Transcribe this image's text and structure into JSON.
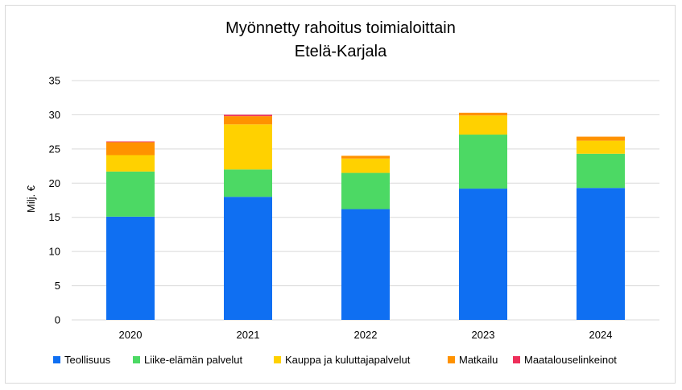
{
  "chart_data": {
    "type": "bar",
    "stacked": true,
    "title": "Myönnetty rahoitus toimialoittain",
    "subtitle": "Etelä-Karjala",
    "ylabel": "Milj. €",
    "xlabel": "",
    "ylim": [
      0,
      35
    ],
    "yticks": [
      0,
      5,
      10,
      15,
      20,
      25,
      30,
      35
    ],
    "grid": true,
    "legend_position": "bottom",
    "categories": [
      "2020",
      "2021",
      "2022",
      "2023",
      "2024"
    ],
    "series": [
      {
        "name": "Teollisuus",
        "color": "#0f6ff2",
        "values": [
          15.1,
          18.0,
          16.2,
          19.2,
          19.3
        ]
      },
      {
        "name": "Liike-elämän palvelut",
        "color": "#4cd964",
        "values": [
          6.6,
          4.0,
          5.3,
          7.9,
          5.0
        ]
      },
      {
        "name": "Kauppa ja kuluttajapalvelut",
        "color": "#ffd100",
        "values": [
          2.4,
          6.6,
          2.1,
          2.8,
          1.9
        ]
      },
      {
        "name": "Matkailu",
        "color": "#ff9200",
        "values": [
          1.9,
          1.2,
          0.4,
          0.4,
          0.6
        ]
      },
      {
        "name": "Maatalouselinkeinot",
        "color": "#ee2f5a",
        "values": [
          0.1,
          0.2,
          0.0,
          0.0,
          0.0
        ]
      }
    ]
  }
}
